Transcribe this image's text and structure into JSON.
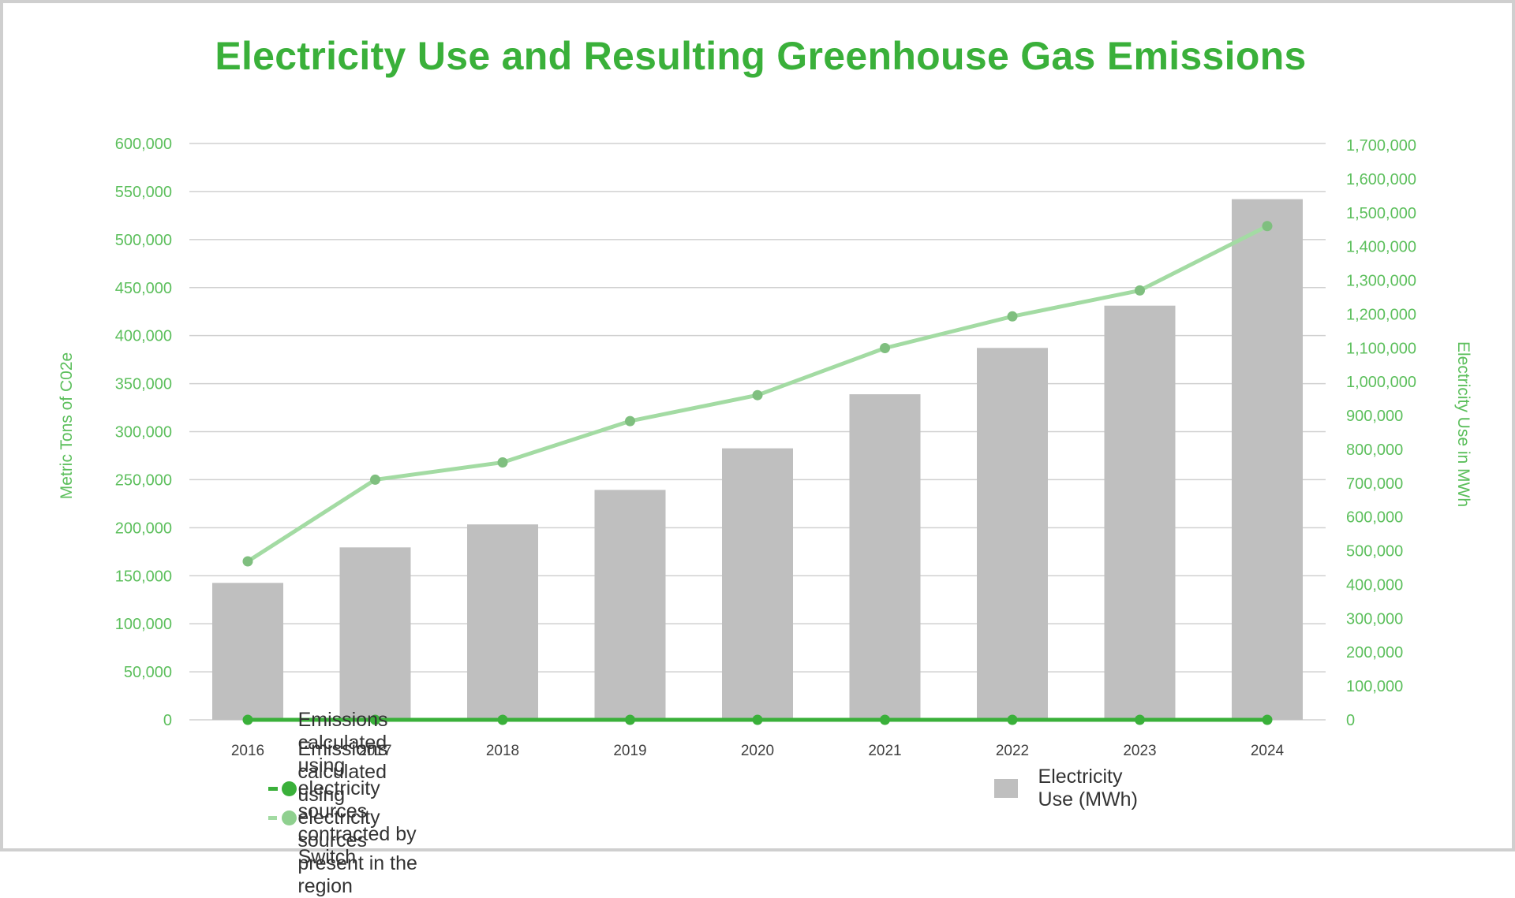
{
  "chart_data": {
    "type": "bar",
    "title": "Electricity Use and Resulting Greenhouse Gas Emissions",
    "categories": [
      "2016",
      "2017",
      "2018",
      "2019",
      "2020",
      "2021",
      "2022",
      "2023",
      "2024"
    ],
    "ylabel_left": "Metric Tons of C02e",
    "ylabel_right": "Electricity Use in MWh",
    "ylim_left": [
      0,
      600000
    ],
    "ylim_right": [
      0,
      1700000
    ],
    "yticks_left": [
      "600,000",
      "550,000",
      "500,000",
      "450,000",
      "400,000",
      "350,000",
      "300,000",
      "250,000",
      "200,000",
      "150,000",
      "100,000",
      "50,000",
      "0"
    ],
    "yticks_right": [
      "1,700,000",
      "1,600,000",
      "1,500,000",
      "1,400,000",
      "1,300,000",
      "1,200,000",
      "1,100,000",
      "1,000,000",
      "900,000",
      "800,000",
      "700,000",
      "600,000",
      "500,000",
      "400,000",
      "300,000",
      "200,000",
      "100,000",
      "0"
    ],
    "grid": true,
    "legend_position": "bottom",
    "series": [
      {
        "name": "Electricity Use (MWh)",
        "kind": "bar",
        "axis": "right",
        "color": "#bfbfbf",
        "values": [
          405000,
          510000,
          578000,
          680000,
          803000,
          963000,
          1100000,
          1225000,
          1540000
        ]
      },
      {
        "name": "Emissions calculated using electricity sources contracted by Switch",
        "kind": "line",
        "axis": "left",
        "color": "#3ab03a",
        "values": [
          0,
          0,
          0,
          0,
          0,
          0,
          0,
          0,
          0
        ]
      },
      {
        "name": "Emissions calculated using electricity sources present in the region",
        "kind": "line",
        "axis": "left",
        "color": "#a3dba3",
        "marker_color": "#7fbf7f",
        "values": [
          165000,
          250000,
          268000,
          311000,
          338000,
          387000,
          420000,
          447000,
          514000
        ]
      }
    ]
  }
}
